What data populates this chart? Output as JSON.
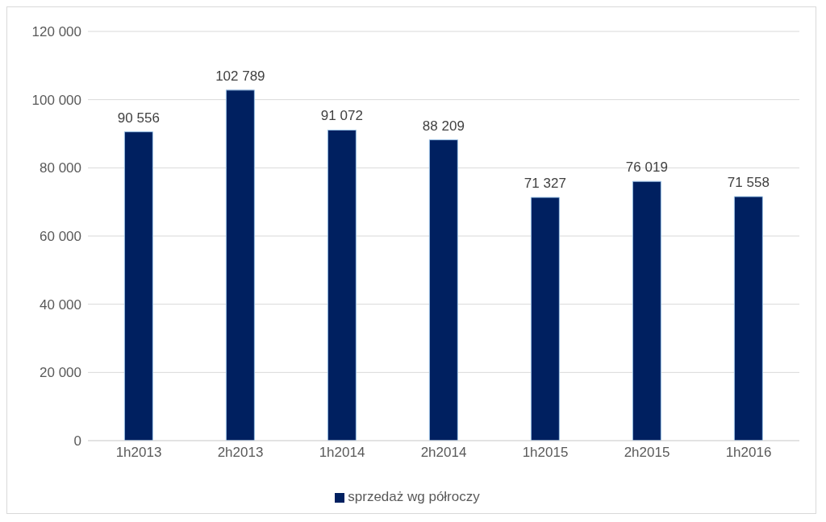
{
  "chart_data": {
    "type": "bar",
    "categories": [
      "1h2013",
      "2h2013",
      "1h2014",
      "2h2014",
      "1h2015",
      "2h2015",
      "1h2016"
    ],
    "series": [
      {
        "name": "sprzedaż wg półroczy",
        "color": "#002060",
        "values": [
          90556,
          102789,
          91072,
          88209,
          71327,
          76019,
          71558
        ],
        "value_labels": [
          "90 556",
          "102 789",
          "91 072",
          "88 209",
          "71 327",
          "76 019",
          "71 558"
        ]
      }
    ],
    "ylim": [
      0,
      120000
    ],
    "yticks": [
      {
        "value": 0,
        "label": "0"
      },
      {
        "value": 20000,
        "label": "20 000"
      },
      {
        "value": 40000,
        "label": "40 000"
      },
      {
        "value": 60000,
        "label": "60 000"
      },
      {
        "value": 80000,
        "label": "80 000"
      },
      {
        "value": 100000,
        "label": "100 000"
      },
      {
        "value": 120000,
        "label": "120 000"
      }
    ],
    "grid": "y",
    "legend": "bottom"
  }
}
